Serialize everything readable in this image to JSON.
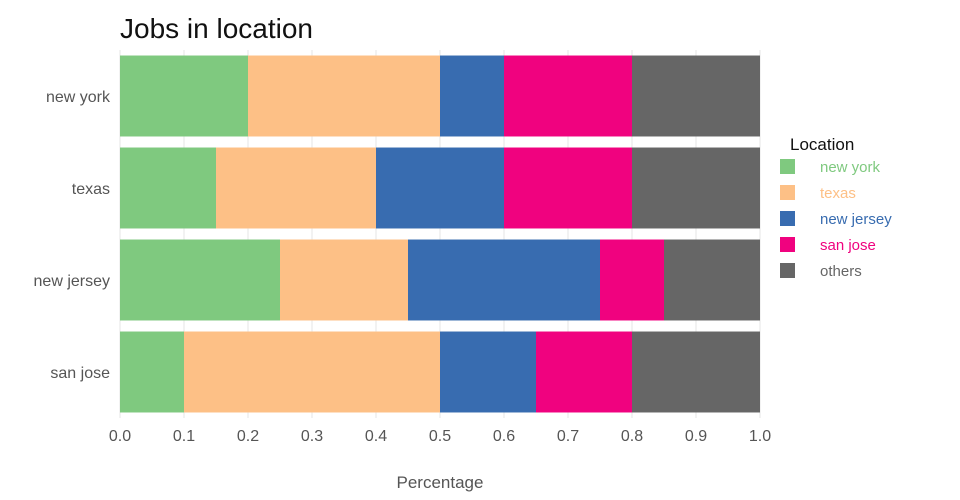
{
  "chart_data": {
    "type": "bar",
    "orientation": "horizontal",
    "stacked": true,
    "title": "Jobs in location",
    "xlabel": "Percentage",
    "ylabel": "",
    "xlim": [
      0,
      1
    ],
    "x_ticks": [
      "0.0",
      "0.1",
      "0.2",
      "0.3",
      "0.4",
      "0.5",
      "0.6",
      "0.7",
      "0.8",
      "0.9",
      "1.0"
    ],
    "categories": [
      "new york",
      "texas",
      "new jersey",
      "san jose"
    ],
    "series": [
      {
        "name": "new york",
        "color": "#7fc97f",
        "values": [
          0.2,
          0.15,
          0.25,
          0.1
        ]
      },
      {
        "name": "texas",
        "color": "#fdc086",
        "values": [
          0.3,
          0.25,
          0.2,
          0.4
        ]
      },
      {
        "name": "new jersey",
        "color": "#386cb0",
        "values": [
          0.1,
          0.2,
          0.3,
          0.15
        ]
      },
      {
        "name": "san jose",
        "color": "#f0027f",
        "values": [
          0.2,
          0.2,
          0.1,
          0.15
        ]
      },
      {
        "name": "others",
        "color": "#666666",
        "values": [
          0.2,
          0.2,
          0.15,
          0.2
        ]
      }
    ],
    "legend": {
      "title": "Location",
      "placement": "right"
    },
    "grid": true
  }
}
